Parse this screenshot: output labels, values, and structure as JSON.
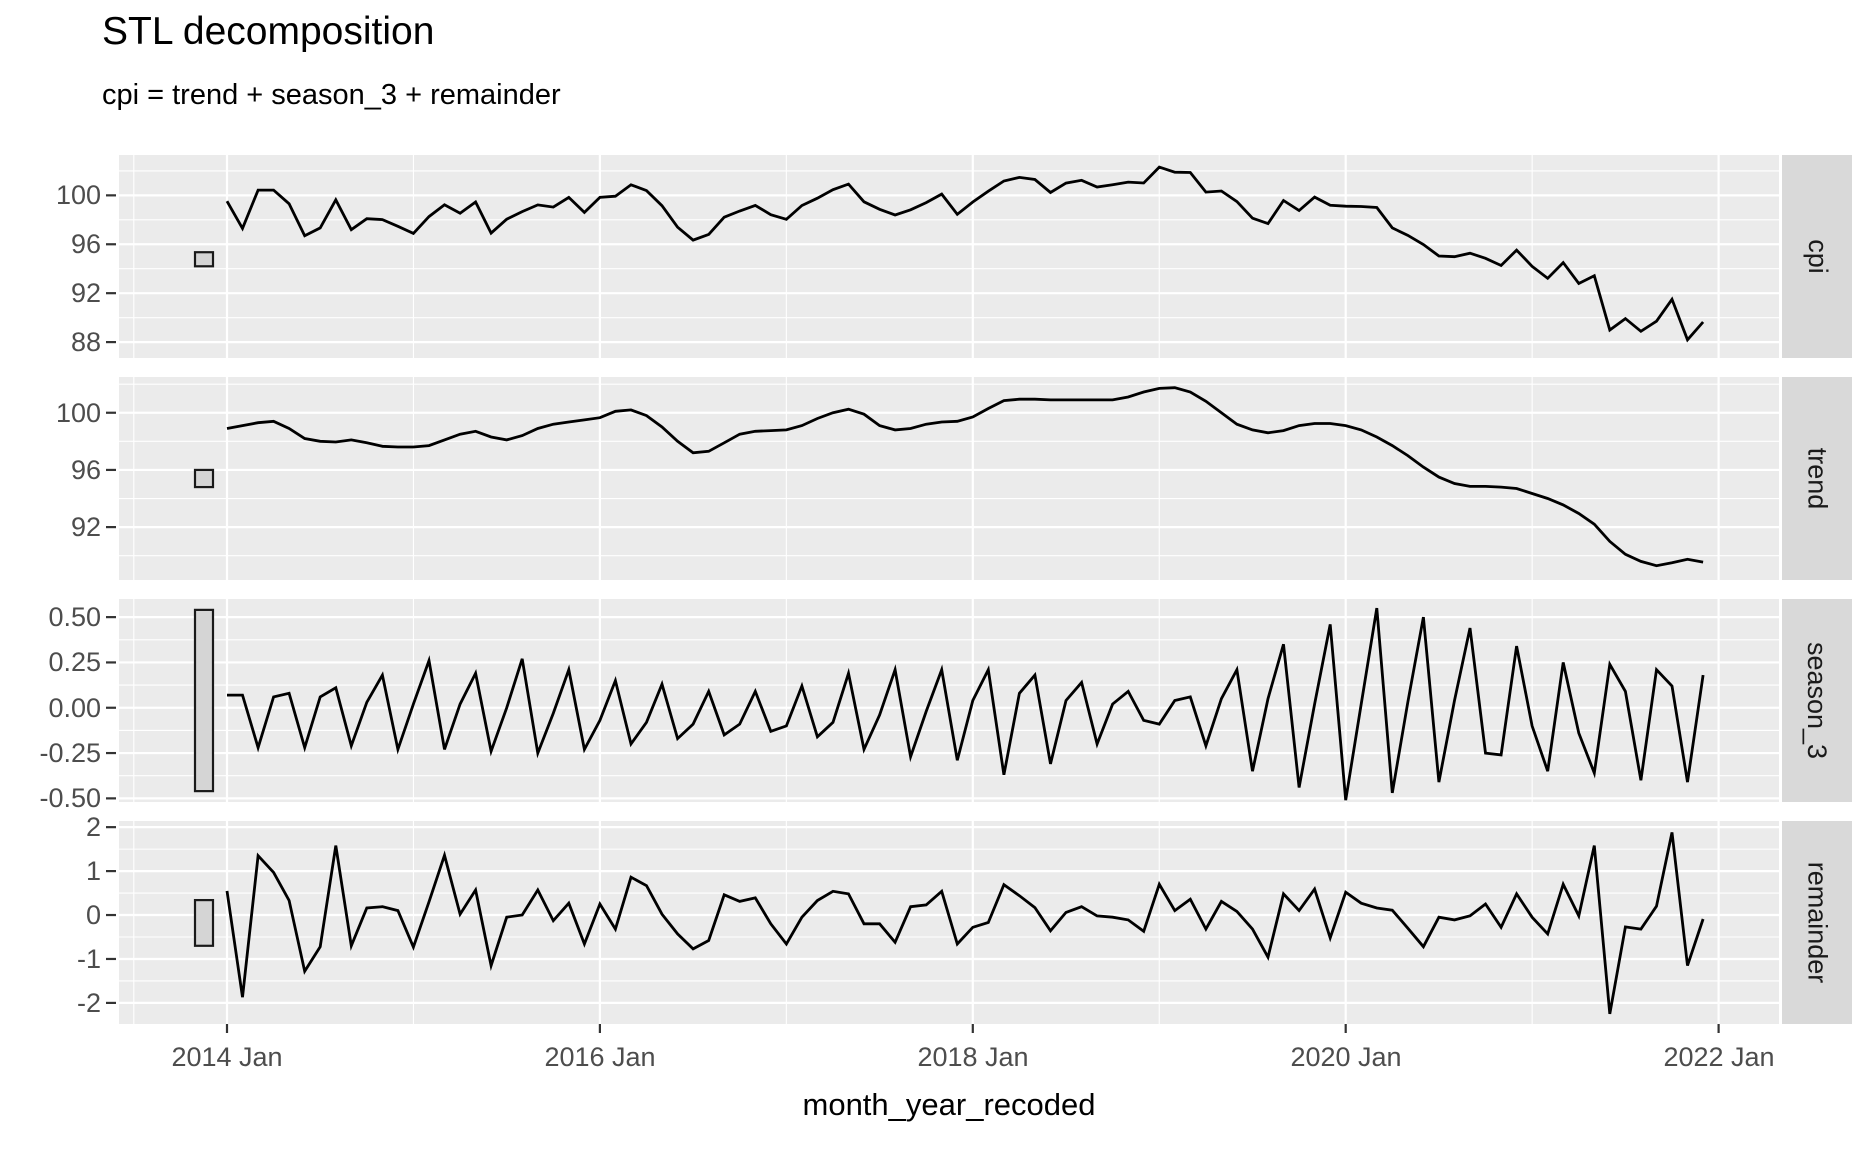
{
  "chart": {
    "title": "STL decomposition",
    "subtitle": "cpi = trend + season_3 + remainder",
    "x_axis_title": "month_year_recoded"
  },
  "colors": {
    "panel_bg": "#EBEBEB",
    "strip_bg": "#D9D9D9",
    "grid": "#FFFFFF",
    "line": "#000000",
    "axis_text": "#4D4D4D",
    "tick_mark": "#333333",
    "scale_bar_fill": "#D5D5D5",
    "scale_bar_stroke": "#1A1A1A"
  },
  "chart_data": {
    "type": "line",
    "title": "STL decomposition",
    "subtitle": "cpi = trend + season_3 + remainder",
    "xlabel": "month_year_recoded",
    "x": {
      "start": "2014 Jan",
      "end": "2021 Dec",
      "frequency": "monthly",
      "n": 96,
      "ticks": [
        {
          "label": "2014 Jan",
          "month_index": 0
        },
        {
          "label": "2016 Jan",
          "month_index": 24
        },
        {
          "label": "2018 Jan",
          "month_index": 48
        },
        {
          "label": "2020 Jan",
          "month_index": 72
        },
        {
          "label": "2022 Jan",
          "month_index": 96
        }
      ],
      "minor_tick_month_indices": [
        -6,
        12,
        36,
        60,
        84
      ]
    },
    "facets": [
      {
        "label": "cpi",
        "ylim": [
          86.7,
          103.3
        ],
        "y_ticks": [
          {
            "label": "100",
            "value": 100
          },
          {
            "label": "96",
            "value": 96
          },
          {
            "label": "92",
            "value": 92
          },
          {
            "label": "88",
            "value": 88
          }
        ],
        "y_minor": [
          102,
          98,
          94,
          90
        ],
        "scale_bar_range": [
          94.2,
          95.35
        ],
        "values": [
          99.52,
          97.3,
          100.43,
          100.43,
          99.31,
          96.7,
          97.34,
          99.64,
          97.19,
          98.09,
          98.02,
          97.47,
          96.89,
          98.26,
          99.23,
          98.54,
          99.46,
          96.91,
          98.05,
          98.67,
          99.22,
          99.04,
          99.83,
          98.61,
          99.83,
          99.93,
          100.86,
          100.39,
          99.15,
          97.4,
          96.34,
          96.81,
          98.21,
          98.72,
          99.18,
          98.42,
          98.04,
          99.17,
          99.77,
          100.46,
          100.92,
          99.47,
          98.86,
          98.39,
          98.82,
          99.41,
          100.1,
          98.45,
          99.46,
          100.34,
          101.17,
          101.47,
          101.3,
          100.23,
          101.0,
          101.23,
          100.68,
          100.87,
          101.08,
          101.01,
          102.31,
          101.89,
          101.87,
          100.27,
          100.36,
          99.49,
          98.13,
          97.69,
          99.58,
          98.76,
          99.86,
          99.19,
          99.11,
          99.09,
          99.01,
          97.34,
          96.73,
          95.98,
          95.04,
          94.98,
          95.27,
          94.85,
          94.26,
          95.52,
          94.2,
          93.22,
          94.5,
          92.79,
          93.42,
          88.99,
          89.92,
          88.88,
          89.71,
          91.5,
          88.19,
          89.64
        ]
      },
      {
        "label": "trend",
        "ylim": [
          88.3,
          102.5
        ],
        "y_ticks": [
          {
            "label": "100",
            "value": 100
          },
          {
            "label": "96",
            "value": 96
          },
          {
            "label": "92",
            "value": 92
          }
        ],
        "y_minor": [
          102,
          98,
          94,
          90
        ],
        "scale_bar_range": [
          94.8,
          96.0
        ],
        "values": [
          98.9,
          99.1,
          99.3,
          99.4,
          98.9,
          98.2,
          98.0,
          97.95,
          98.1,
          97.9,
          97.65,
          97.6,
          97.6,
          97.7,
          98.1,
          98.5,
          98.7,
          98.3,
          98.1,
          98.4,
          98.9,
          99.2,
          99.35,
          99.5,
          99.65,
          100.1,
          100.2,
          99.8,
          99.0,
          98.0,
          97.2,
          97.3,
          97.9,
          98.5,
          98.7,
          98.75,
          98.8,
          99.1,
          99.6,
          100.0,
          100.25,
          99.9,
          99.1,
          98.8,
          98.9,
          99.2,
          99.35,
          99.4,
          99.7,
          100.3,
          100.85,
          100.95,
          100.95,
          100.9,
          100.9,
          100.9,
          100.9,
          100.9,
          101.1,
          101.45,
          101.7,
          101.75,
          101.45,
          100.8,
          100.0,
          99.2,
          98.8,
          98.6,
          98.75,
          99.1,
          99.25,
          99.25,
          99.1,
          98.8,
          98.3,
          97.7,
          97.0,
          96.2,
          95.5,
          95.05,
          94.85,
          94.85,
          94.8,
          94.7,
          94.35,
          94.0,
          93.55,
          92.95,
          92.2,
          91.0,
          90.1,
          89.6,
          89.3,
          89.5,
          89.75,
          89.55
        ]
      },
      {
        "label": "season_3",
        "ylim": [
          -0.52,
          0.6
        ],
        "y_ticks": [
          {
            "label": "0.50",
            "value": 0.5
          },
          {
            "label": "0.25",
            "value": 0.25
          },
          {
            "label": "0.00",
            "value": 0.0
          },
          {
            "label": "-0.25",
            "value": -0.25
          },
          {
            "label": "-0.50",
            "value": -0.5
          }
        ],
        "y_minor": [
          0.375,
          0.125,
          -0.125,
          -0.375
        ],
        "scale_bar_range": [
          -0.46,
          0.54
        ],
        "values": [
          0.07,
          0.07,
          -0.22,
          0.06,
          0.08,
          -0.22,
          0.06,
          0.11,
          -0.21,
          0.03,
          0.18,
          -0.23,
          0.02,
          0.26,
          -0.23,
          0.02,
          0.19,
          -0.24,
          0.0,
          0.27,
          -0.25,
          -0.03,
          0.21,
          -0.23,
          -0.07,
          0.15,
          -0.2,
          -0.08,
          0.13,
          -0.17,
          -0.09,
          0.09,
          -0.15,
          -0.09,
          0.09,
          -0.13,
          -0.1,
          0.12,
          -0.16,
          -0.08,
          0.19,
          -0.23,
          -0.04,
          0.21,
          -0.27,
          -0.02,
          0.21,
          -0.29,
          0.04,
          0.21,
          -0.37,
          0.08,
          0.18,
          -0.31,
          0.04,
          0.14,
          -0.2,
          0.02,
          0.09,
          -0.07,
          -0.09,
          0.04,
          0.06,
          -0.21,
          0.05,
          0.21,
          -0.35,
          0.05,
          0.35,
          -0.44,
          0.02,
          0.46,
          -0.51,
          0.02,
          0.55,
          -0.47,
          0.03,
          0.5,
          -0.41,
          0.04,
          0.44,
          -0.25,
          -0.26,
          0.34,
          -0.1,
          -0.35,
          0.25,
          -0.14,
          -0.36,
          0.24,
          0.09,
          -0.4,
          0.21,
          0.12,
          -0.41,
          0.18
        ]
      },
      {
        "label": "remainder",
        "ylim": [
          -2.48,
          2.14
        ],
        "y_ticks": [
          {
            "label": "2",
            "value": 2
          },
          {
            "label": "1",
            "value": 1
          },
          {
            "label": "0",
            "value": 0
          },
          {
            "label": "-1",
            "value": -1
          },
          {
            "label": "-2",
            "value": -2
          }
        ],
        "y_minor": [
          1.5,
          0.5,
          -0.5,
          -1.5
        ],
        "scale_bar_range": [
          -0.7,
          0.34
        ],
        "values": [
          0.55,
          -1.87,
          1.35,
          0.97,
          0.33,
          -1.28,
          -0.72,
          1.58,
          -0.7,
          0.16,
          0.19,
          0.1,
          -0.73,
          0.3,
          1.36,
          0.02,
          0.57,
          -1.15,
          -0.05,
          0.0,
          0.57,
          -0.13,
          0.27,
          -0.66,
          0.25,
          -0.32,
          0.86,
          0.67,
          0.02,
          -0.43,
          -0.77,
          -0.58,
          0.46,
          0.31,
          0.39,
          -0.2,
          -0.66,
          -0.05,
          0.33,
          0.54,
          0.48,
          -0.2,
          -0.2,
          -0.62,
          0.19,
          0.23,
          0.54,
          -0.66,
          -0.28,
          -0.17,
          0.69,
          0.44,
          0.17,
          -0.36,
          0.06,
          0.19,
          -0.02,
          -0.05,
          -0.11,
          -0.37,
          0.7,
          0.1,
          0.36,
          -0.32,
          0.31,
          0.08,
          -0.32,
          -0.96,
          0.48,
          0.1,
          0.59,
          -0.52,
          0.52,
          0.27,
          0.16,
          0.11,
          -0.3,
          -0.72,
          -0.05,
          -0.11,
          -0.02,
          0.25,
          -0.28,
          0.48,
          -0.05,
          -0.43,
          0.7,
          -0.02,
          1.58,
          -2.25,
          -0.27,
          -0.32,
          0.2,
          1.88,
          -1.15,
          -0.09
        ]
      }
    ]
  }
}
